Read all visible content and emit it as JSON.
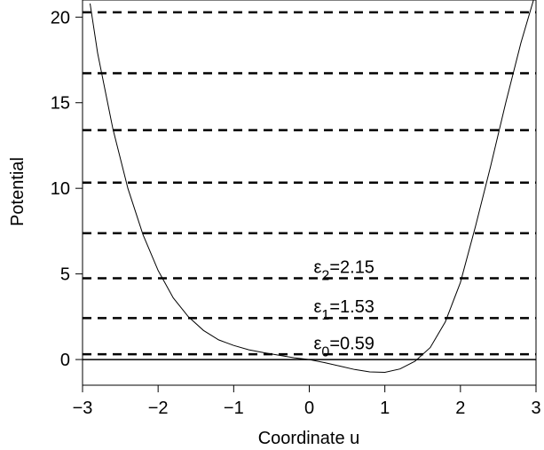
{
  "chart_data": {
    "type": "line",
    "xlabel": "Coordinate u",
    "ylabel": "Potential",
    "xlim": [
      -3,
      3
    ],
    "ylim": [
      -1.5,
      21
    ],
    "x_ticks": [
      "−3",
      "−2",
      "−1",
      "0",
      "1",
      "2",
      "3"
    ],
    "y_ticks": [
      "0",
      "5",
      "10",
      "15",
      "20"
    ],
    "grid": false,
    "potential_curve": {
      "x": [
        -2.9,
        -2.8,
        -2.6,
        -2.4,
        -2.2,
        -2.0,
        -1.8,
        -1.6,
        -1.4,
        -1.2,
        -1.0,
        -0.8,
        -0.6,
        -0.4,
        -0.2,
        0.0,
        0.2,
        0.4,
        0.6,
        0.8,
        1.0,
        1.2,
        1.4,
        1.6,
        1.8,
        2.0,
        2.2,
        2.4,
        2.6,
        2.8,
        3.0
      ],
      "y": [
        20.8,
        17.9,
        13.5,
        10.0,
        7.3,
        5.2,
        3.6,
        2.5,
        1.7,
        1.15,
        0.82,
        0.57,
        0.4,
        0.25,
        0.1,
        0.0,
        -0.18,
        -0.38,
        -0.58,
        -0.72,
        -0.75,
        -0.55,
        -0.1,
        0.7,
        2.2,
        4.5,
        7.8,
        11.3,
        15.0,
        18.5,
        21.5
      ]
    },
    "energy_levels": [
      0.31,
      2.42,
      4.75,
      7.38,
      10.33,
      13.4,
      16.72,
      20.28
    ],
    "baseline": 0,
    "annotations": [
      {
        "symbol": "ε",
        "sub": "0",
        "text": "=0.59",
        "x": 0.0,
        "y": 0.59
      },
      {
        "symbol": "ε",
        "sub": "1",
        "text": "=1.53",
        "x": 0.0,
        "y": 2.75
      },
      {
        "symbol": "ε",
        "sub": "2",
        "text": "=2.15",
        "x": 0.0,
        "y": 5.05
      }
    ]
  }
}
